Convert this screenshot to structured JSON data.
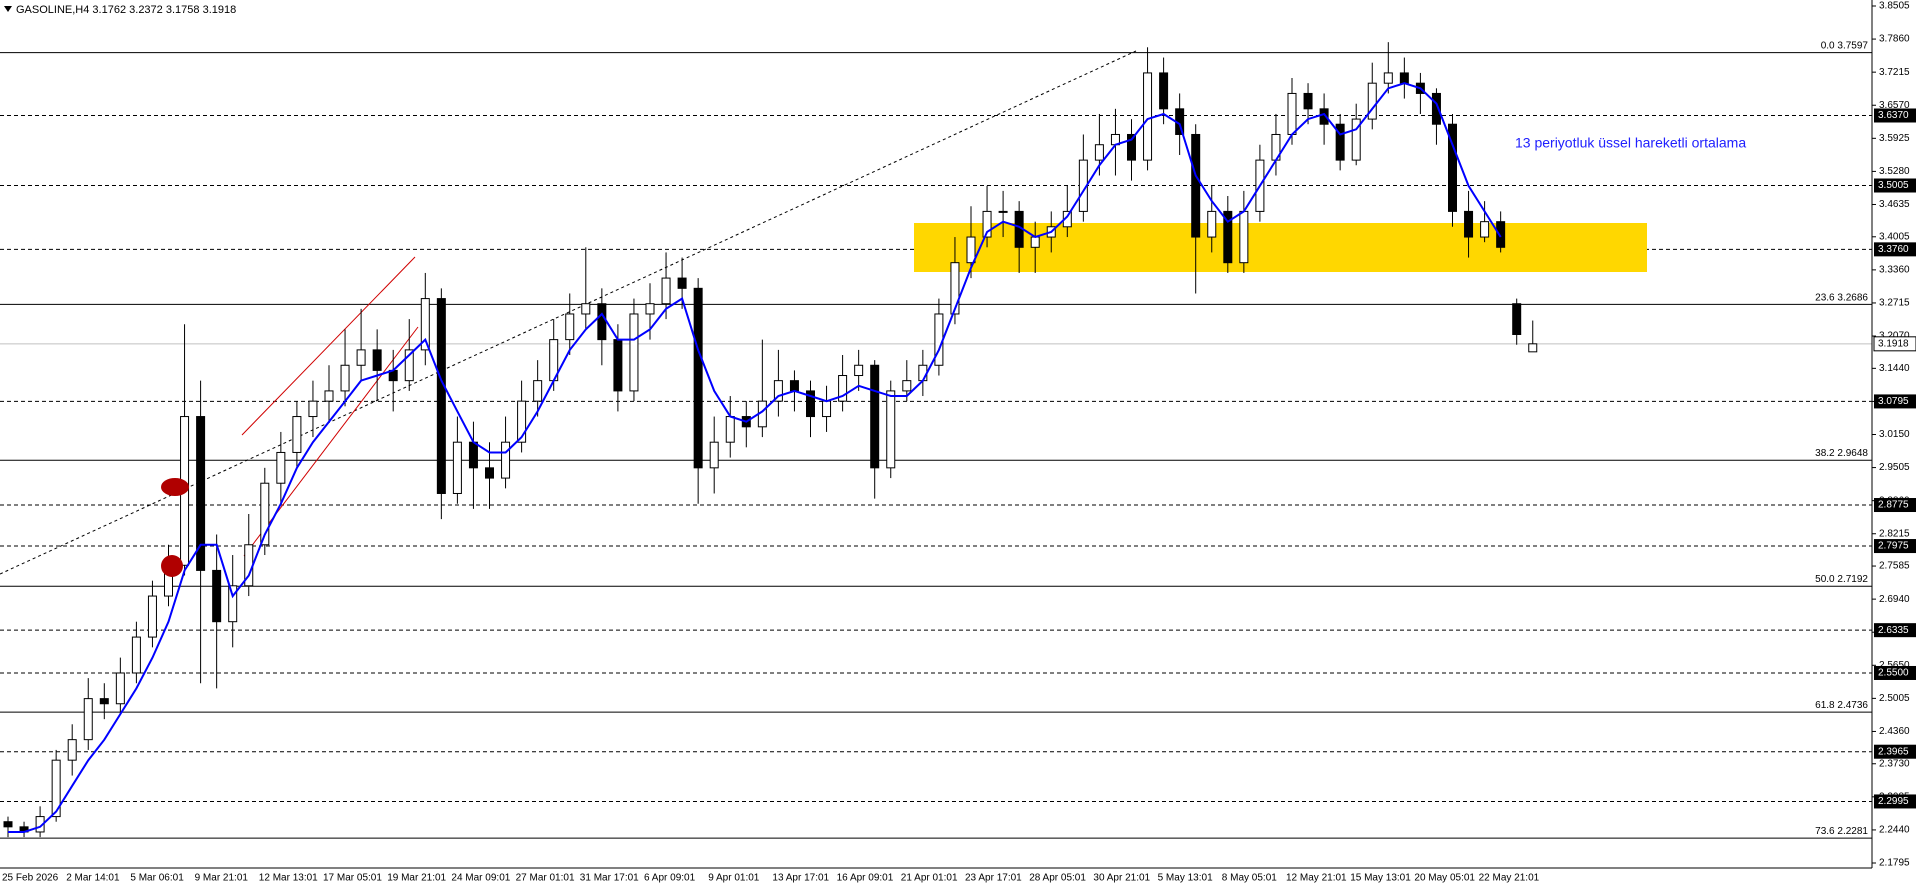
{
  "chart_data": {
    "type": "candlestick",
    "symbol": "GASOLINE,H4",
    "header_ohlc": [
      3.1762,
      3.2372,
      3.1758,
      3.1918
    ],
    "annotation": "13 periyotluk üssel hareketli ortalama",
    "up_color": "#ffffff",
    "down_color": "#000000",
    "categories": [
      "25 Feb 2026",
      null,
      null,
      null,
      "2 Mar 14:01",
      null,
      null,
      null,
      "5 Mar 06:01",
      null,
      null,
      null,
      "9 Mar 21:01",
      null,
      null,
      null,
      "12 Mar 13:01",
      null,
      null,
      null,
      "17 Mar 05:01",
      null,
      null,
      null,
      "19 Mar 21:01",
      null,
      null,
      null,
      "24 Mar 09:01",
      null,
      null,
      null,
      "27 Mar 01:01",
      null,
      null,
      null,
      "31 Mar 17:01",
      null,
      null,
      null,
      "6 Apr 09:01",
      null,
      null,
      null,
      "9 Apr 01:01",
      null,
      null,
      null,
      "13 Apr 17:01",
      null,
      null,
      null,
      "16 Apr 09:01",
      null,
      null,
      null,
      "21 Apr 01:01",
      null,
      null,
      null,
      "23 Apr 17:01",
      null,
      null,
      null,
      "28 Apr 05:01",
      null,
      null,
      null,
      "30 Apr 21:01",
      null,
      null,
      null,
      "5 May 13:01",
      null,
      null,
      null,
      "8 May 05:01",
      null,
      null,
      null,
      "12 May 21:01",
      null,
      null,
      null,
      "15 May 13:01",
      null,
      null,
      null,
      "20 May 05:01",
      null,
      null,
      null,
      "22 May 21:01",
      null,
      null,
      null
    ],
    "candles": [
      [
        2.26,
        2.27,
        2.23,
        2.25
      ],
      [
        2.25,
        2.26,
        2.23,
        2.24
      ],
      [
        2.24,
        2.29,
        2.23,
        2.27
      ],
      [
        2.27,
        2.4,
        2.26,
        2.38
      ],
      [
        2.38,
        2.45,
        2.35,
        2.42
      ],
      [
        2.42,
        2.54,
        2.4,
        2.5
      ],
      [
        2.5,
        2.53,
        2.46,
        2.49
      ],
      [
        2.49,
        2.58,
        2.47,
        2.55
      ],
      [
        2.55,
        2.65,
        2.53,
        2.62
      ],
      [
        2.62,
        2.73,
        2.6,
        2.7
      ],
      [
        2.7,
        2.8,
        2.68,
        2.76
      ],
      [
        2.76,
        3.23,
        2.74,
        3.05
      ],
      [
        3.05,
        3.12,
        2.53,
        2.75
      ],
      [
        2.75,
        2.82,
        2.52,
        2.65
      ],
      [
        2.65,
        2.78,
        2.6,
        2.72
      ],
      [
        2.72,
        2.86,
        2.7,
        2.8
      ],
      [
        2.8,
        2.95,
        2.78,
        2.92
      ],
      [
        2.92,
        3.02,
        2.88,
        2.98
      ],
      [
        2.98,
        3.08,
        2.95,
        3.05
      ],
      [
        3.05,
        3.12,
        3.01,
        3.08
      ],
      [
        3.08,
        3.15,
        3.04,
        3.1
      ],
      [
        3.1,
        3.22,
        3.07,
        3.15
      ],
      [
        3.15,
        3.26,
        3.12,
        3.18
      ],
      [
        3.18,
        3.22,
        3.08,
        3.14
      ],
      [
        3.14,
        3.18,
        3.06,
        3.12
      ],
      [
        3.12,
        3.24,
        3.1,
        3.18
      ],
      [
        3.18,
        3.33,
        3.15,
        3.28
      ],
      [
        3.28,
        3.3,
        2.85,
        2.9
      ],
      [
        2.9,
        3.05,
        2.88,
        3.0
      ],
      [
        3.0,
        3.04,
        2.87,
        2.95
      ],
      [
        2.95,
        3.0,
        2.87,
        2.93
      ],
      [
        2.93,
        3.05,
        2.91,
        3.0
      ],
      [
        3.0,
        3.12,
        2.98,
        3.08
      ],
      [
        3.08,
        3.16,
        3.05,
        3.12
      ],
      [
        3.12,
        3.24,
        3.1,
        3.2
      ],
      [
        3.2,
        3.29,
        3.17,
        3.25
      ],
      [
        3.25,
        3.38,
        3.22,
        3.27
      ],
      [
        3.27,
        3.3,
        3.15,
        3.2
      ],
      [
        3.2,
        3.23,
        3.06,
        3.1
      ],
      [
        3.1,
        3.28,
        3.08,
        3.25
      ],
      [
        3.25,
        3.31,
        3.2,
        3.27
      ],
      [
        3.27,
        3.37,
        3.24,
        3.32
      ],
      [
        3.32,
        3.36,
        3.26,
        3.3
      ],
      [
        3.3,
        3.32,
        2.88,
        2.95
      ],
      [
        2.95,
        3.05,
        2.9,
        3.0
      ],
      [
        3.0,
        3.09,
        2.97,
        3.05
      ],
      [
        3.05,
        3.08,
        2.99,
        3.03
      ],
      [
        3.03,
        3.2,
        3.01,
        3.08
      ],
      [
        3.08,
        3.18,
        3.05,
        3.12
      ],
      [
        3.12,
        3.14,
        3.06,
        3.1
      ],
      [
        3.1,
        3.12,
        3.01,
        3.05
      ],
      [
        3.05,
        3.11,
        3.02,
        3.08
      ],
      [
        3.08,
        3.17,
        3.06,
        3.13
      ],
      [
        3.13,
        3.18,
        3.1,
        3.15
      ],
      [
        3.15,
        3.16,
        2.89,
        2.95
      ],
      [
        2.95,
        3.12,
        2.93,
        3.1
      ],
      [
        3.1,
        3.16,
        3.08,
        3.12
      ],
      [
        3.12,
        3.18,
        3.09,
        3.15
      ],
      [
        3.15,
        3.28,
        3.13,
        3.25
      ],
      [
        3.25,
        3.4,
        3.23,
        3.35
      ],
      [
        3.35,
        3.46,
        3.32,
        3.4
      ],
      [
        3.4,
        3.5,
        3.38,
        3.45
      ],
      [
        3.45,
        3.49,
        3.4,
        3.45
      ],
      [
        3.45,
        3.47,
        3.33,
        3.38
      ],
      [
        3.38,
        3.43,
        3.33,
        3.4
      ],
      [
        3.4,
        3.45,
        3.37,
        3.42
      ],
      [
        3.42,
        3.5,
        3.4,
        3.45
      ],
      [
        3.45,
        3.6,
        3.43,
        3.55
      ],
      [
        3.55,
        3.64,
        3.52,
        3.58
      ],
      [
        3.58,
        3.65,
        3.52,
        3.6
      ],
      [
        3.6,
        3.63,
        3.51,
        3.55
      ],
      [
        3.55,
        3.77,
        3.53,
        3.72
      ],
      [
        3.72,
        3.75,
        3.62,
        3.65
      ],
      [
        3.65,
        3.68,
        3.56,
        3.6
      ],
      [
        3.6,
        3.62,
        3.29,
        3.4
      ],
      [
        3.4,
        3.5,
        3.37,
        3.45
      ],
      [
        3.45,
        3.48,
        3.33,
        3.35
      ],
      [
        3.35,
        3.49,
        3.33,
        3.45
      ],
      [
        3.45,
        3.58,
        3.43,
        3.55
      ],
      [
        3.55,
        3.64,
        3.52,
        3.6
      ],
      [
        3.6,
        3.71,
        3.58,
        3.68
      ],
      [
        3.68,
        3.7,
        3.62,
        3.65
      ],
      [
        3.65,
        3.68,
        3.58,
        3.62
      ],
      [
        3.62,
        3.64,
        3.53,
        3.55
      ],
      [
        3.55,
        3.66,
        3.54,
        3.63
      ],
      [
        3.63,
        3.74,
        3.61,
        3.7
      ],
      [
        3.7,
        3.78,
        3.68,
        3.72
      ],
      [
        3.72,
        3.75,
        3.67,
        3.7
      ],
      [
        3.7,
        3.72,
        3.64,
        3.68
      ],
      [
        3.68,
        3.69,
        3.58,
        3.62
      ],
      [
        3.62,
        3.64,
        3.42,
        3.45
      ],
      [
        3.45,
        3.49,
        3.36,
        3.4
      ],
      [
        3.4,
        3.47,
        3.39,
        3.43
      ],
      [
        3.43,
        3.45,
        3.37,
        3.38
      ],
      [
        3.27,
        3.28,
        3.19,
        3.21
      ],
      [
        3.1762,
        3.2372,
        3.1758,
        3.1918
      ]
    ],
    "ema": {
      "color": "#0000ff",
      "values": [
        2.24,
        2.24,
        2.25,
        2.28,
        2.33,
        2.38,
        2.42,
        2.47,
        2.52,
        2.58,
        2.65,
        2.75,
        2.8,
        2.8,
        2.7,
        2.74,
        2.82,
        2.88,
        2.95,
        3.0,
        3.04,
        3.08,
        3.12,
        3.13,
        3.14,
        3.17,
        3.2,
        3.12,
        3.06,
        3.0,
        2.98,
        2.98,
        3.01,
        3.06,
        3.12,
        3.18,
        3.22,
        3.25,
        3.2,
        3.2,
        3.22,
        3.26,
        3.28,
        3.18,
        3.1,
        3.05,
        3.04,
        3.06,
        3.09,
        3.1,
        3.09,
        3.08,
        3.09,
        3.11,
        3.1,
        3.09,
        3.09,
        3.12,
        3.18,
        3.26,
        3.34,
        3.41,
        3.43,
        3.42,
        3.4,
        3.41,
        3.44,
        3.49,
        3.54,
        3.58,
        3.59,
        3.63,
        3.64,
        3.62,
        3.52,
        3.47,
        3.43,
        3.45,
        3.5,
        3.55,
        3.6,
        3.63,
        3.64,
        3.6,
        3.61,
        3.65,
        3.69,
        3.7,
        3.69,
        3.66,
        3.58,
        3.5,
        3.45,
        3.4,
        null,
        null
      ]
    },
    "ylim": [
      2.1795,
      3.8505
    ],
    "yticks": [
      3.8505,
      {
        "value": 3.786,
        "label": "3.7860"
      },
      3.7215,
      {
        "value": 3.657,
        "label": "3.6570"
      },
      3.5925,
      {
        "value": 3.528,
        "label": "3.5280"
      },
      3.4635,
      3.4005,
      {
        "value": 3.336,
        "label": "3.3360"
      },
      3.2715,
      {
        "value": 3.207,
        "label": "3.2070"
      },
      {
        "value": 3.144,
        "label": "3.1440"
      },
      3.0795,
      {
        "value": 3.015,
        "label": "3.0150"
      },
      2.9505,
      {
        "value": 2.886,
        "label": "2.8860"
      },
      2.8215,
      2.7585,
      {
        "value": 2.694,
        "label": "2.6940"
      },
      2.6295,
      {
        "value": 2.565,
        "label": "2.5650"
      },
      2.5005,
      {
        "value": 2.436,
        "label": "2.4360"
      },
      {
        "value": 2.373,
        "label": "2.3730"
      },
      2.3085,
      {
        "value": 2.244,
        "label": "2.2440"
      },
      2.1795
    ],
    "levels": [
      {
        "value": 3.637,
        "label": "3.6370"
      },
      3.5005,
      {
        "value": 3.376,
        "label": "3.3760"
      },
      3.0795,
      2.8775,
      2.7975,
      2.6335,
      {
        "value": 2.55,
        "label": "2.5500"
      },
      2.3965,
      2.2995
    ],
    "last_price": 3.1918,
    "fib": [
      {
        "level": "0.0",
        "value": 3.7597
      },
      {
        "level": "23.6",
        "value": 3.2686
      },
      {
        "level": "38.2",
        "value": 2.9648
      },
      {
        "level": "50.0",
        "value": 2.7192
      },
      {
        "level": "61.8",
        "value": 2.4736
      },
      {
        "level": "73.6",
        "value": 2.2281
      }
    ]
  }
}
